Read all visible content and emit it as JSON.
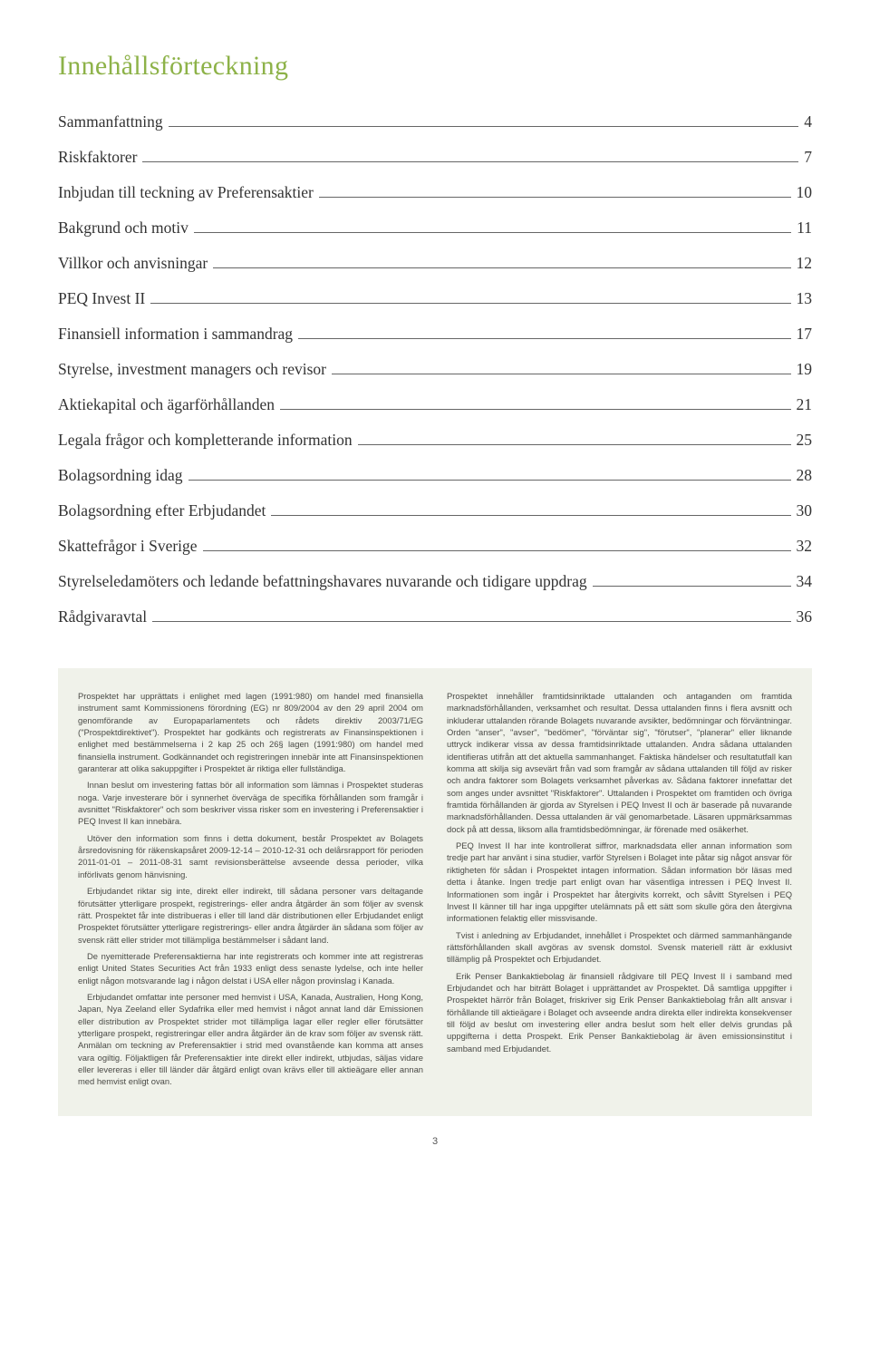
{
  "title": "Innehållsförteckning",
  "toc": [
    {
      "label": "Sammanfattning",
      "page": "4"
    },
    {
      "label": "Riskfaktorer",
      "page": "7"
    },
    {
      "label": "Inbjudan till teckning av Preferensaktier",
      "page": "10"
    },
    {
      "label": "Bakgrund och motiv",
      "page": "11"
    },
    {
      "label": "Villkor och anvisningar",
      "page": "12"
    },
    {
      "label": "PEQ Invest II",
      "page": "13"
    },
    {
      "label": "Finansiell information i sammandrag",
      "page": "17"
    },
    {
      "label": "Styrelse, investment managers och revisor",
      "page": "19"
    },
    {
      "label": "Aktiekapital och ägarförhållanden",
      "page": "21"
    },
    {
      "label": "Legala frågor och kompletterande information",
      "page": "25"
    },
    {
      "label": "Bolagsordning idag",
      "page": "28"
    },
    {
      "label": "Bolagsordning efter Erbjudandet",
      "page": "30"
    },
    {
      "label": "Skattefrågor i Sverige",
      "page": "32"
    },
    {
      "label": "Styrelseledamöters och ledande befattningshavares nuvarande och tidigare uppdrag",
      "page": "34"
    },
    {
      "label": "Rådgivaravtal",
      "page": "36"
    }
  ],
  "left": {
    "p1": "Prospektet har upprättats i enlighet med lagen (1991:980) om handel med finansiella instrument samt Kommissionens förordning (EG) nr 809/2004 av den 29 april 2004 om genomförande av Europaparlamentets och rådets direktiv 2003/71/EG (\"Prospektdirektivet\"). Prospektet har godkänts och registrerats av Finansinspektionen i enlighet med bestämmelserna i 2 kap 25 och 26§ lagen (1991:980) om handel med finansiella instrument. Godkännandet och registreringen innebär inte att Finansinspektionen garanterar att olika sakuppgifter i Prospektet är riktiga eller fullständiga.",
    "p2": "Innan beslut om investering fattas bör all information som lämnas i Prospektet studeras noga. Varje investerare bör i synnerhet överväga de specifika förhållanden som framgår i avsnittet \"Riskfaktorer\" och som beskriver vissa risker som en investering i Preferensaktier i PEQ Invest II kan innebära.",
    "p3": "Utöver den information som finns i detta dokument, består Prospektet av Bolagets årsredovisning för räkenskapsåret 2009-12-14 – 2010-12-31 och delårsrapport för perioden 2011-01-01 – 2011-08-31 samt revisionsberättelse avseende dessa perioder, vilka införlivats genom hänvisning.",
    "p4": "Erbjudandet riktar sig inte, direkt eller indirekt, till sådana personer vars deltagande förutsätter ytterligare prospekt, registrerings- eller andra åtgärder än som följer av svensk rätt. Prospektet får inte distribueras i eller till land där distributionen eller Erbjudandet enligt Prospektet förutsätter ytterligare registrerings- eller andra åtgärder än sådana som följer av svensk rätt eller strider mot tillämpliga bestämmelser i sådant land.",
    "p5": "De nyemitterade Preferensaktierna har inte registrerats och kommer inte att registreras enligt United States Securities Act från 1933 enligt dess senaste lydelse, och inte heller enligt någon motsvarande lag i någon delstat i USA eller någon provinslag i Kanada.",
    "p6": "Erbjudandet omfattar inte personer med hemvist i USA, Kanada, Australien, Hong Kong, Japan, Nya Zeeland eller Sydafrika eller med hemvist i något annat land där Emissionen eller distribution av Prospektet strider mot tillämpliga lagar eller regler eller förutsätter ytterligare prospekt, registreringar eller andra åtgärder än de krav som följer av svensk rätt. Anmälan om teckning av Preferensaktier i strid med ovanstående kan komma att anses vara ogiltig. Följaktligen får Preferensaktier inte direkt eller indirekt, utbjudas, säljas vidare eller levereras i eller till länder där åtgärd enligt ovan krävs eller till aktieägare eller annan med hemvist enligt ovan."
  },
  "right": {
    "p1": "Prospektet innehåller framtidsinriktade uttalanden och antaganden om framtida marknadsförhållanden, verksamhet och resultat. Dessa uttalanden finns i flera avsnitt och inkluderar uttalanden rörande Bolagets nuvarande avsikter, bedömningar och förväntningar. Orden \"anser\", \"avser\", \"bedömer\", \"förväntar sig\", \"förutser\", \"planerar\" eller liknande uttryck indikerar vissa av dessa framtidsinriktade uttalanden. Andra sådana uttalanden identifieras utifrån att det aktuella sammanhanget. Faktiska händelser och resultatutfall kan komma att skilja sig avsevärt från vad som framgår av sådana uttalanden till följd av risker och andra faktorer som Bolagets verksamhet påverkas av. Sådana faktorer innefattar det som anges under avsnittet \"Riskfaktorer\". Uttalanden i Prospektet om framtiden och övriga framtida förhållanden är gjorda av Styrelsen i PEQ Invest II och är baserade på nuvarande marknadsförhållanden. Dessa uttalanden är väl genomarbetade. Läsaren uppmärksammas dock på att dessa, liksom alla framtidsbedömningar, är förenade med osäkerhet.",
    "p2": "PEQ Invest II har inte kontrollerat siffror, marknadsdata eller annan information som tredje part har använt i sina studier, varför Styrelsen i Bolaget inte påtar sig något ansvar för riktigheten för sådan i Prospektet intagen information. Sådan information bör läsas med detta i åtanke. Ingen tredje part enligt ovan har väsentliga intressen i PEQ Invest II. Informationen som ingår i Prospektet har återgivits korrekt, och såvitt Styrelsen i PEQ Invest II känner till har inga uppgifter utelämnats på ett sätt som skulle göra den återgivna informationen felaktig eller missvisande.",
    "p3": "Tvist i anledning av Erbjudandet, innehållet i Prospektet och därmed sammanhängande rättsförhållanden skall avgöras av svensk domstol. Svensk materiell rätt är exklusivt tillämplig på Prospektet och Erbjudandet.",
    "p4": "Erik Penser Bankaktiebolag är finansiell rådgivare till PEQ Invest II i samband med Erbjudandet och har biträtt Bolaget i upprättandet av Prospektet. Då samtliga uppgifter i Prospektet härrör från Bolaget, friskriver sig Erik Penser Bankaktiebolag från allt ansvar i förhållande till aktieägare i Bolaget och avseende andra direkta eller indirekta konsekvenser till följd av beslut om investering eller andra beslut som helt eller delvis grundas på uppgifterna i detta Prospekt. Erik Penser Bankaktiebolag är även emissionsinstitut i samband med Erbjudandet."
  },
  "pagenum": "3",
  "colors": {
    "heading": "#8db248",
    "panel_bg": "#f0f2ea",
    "body": "#222",
    "fine": "#4a4a46"
  }
}
